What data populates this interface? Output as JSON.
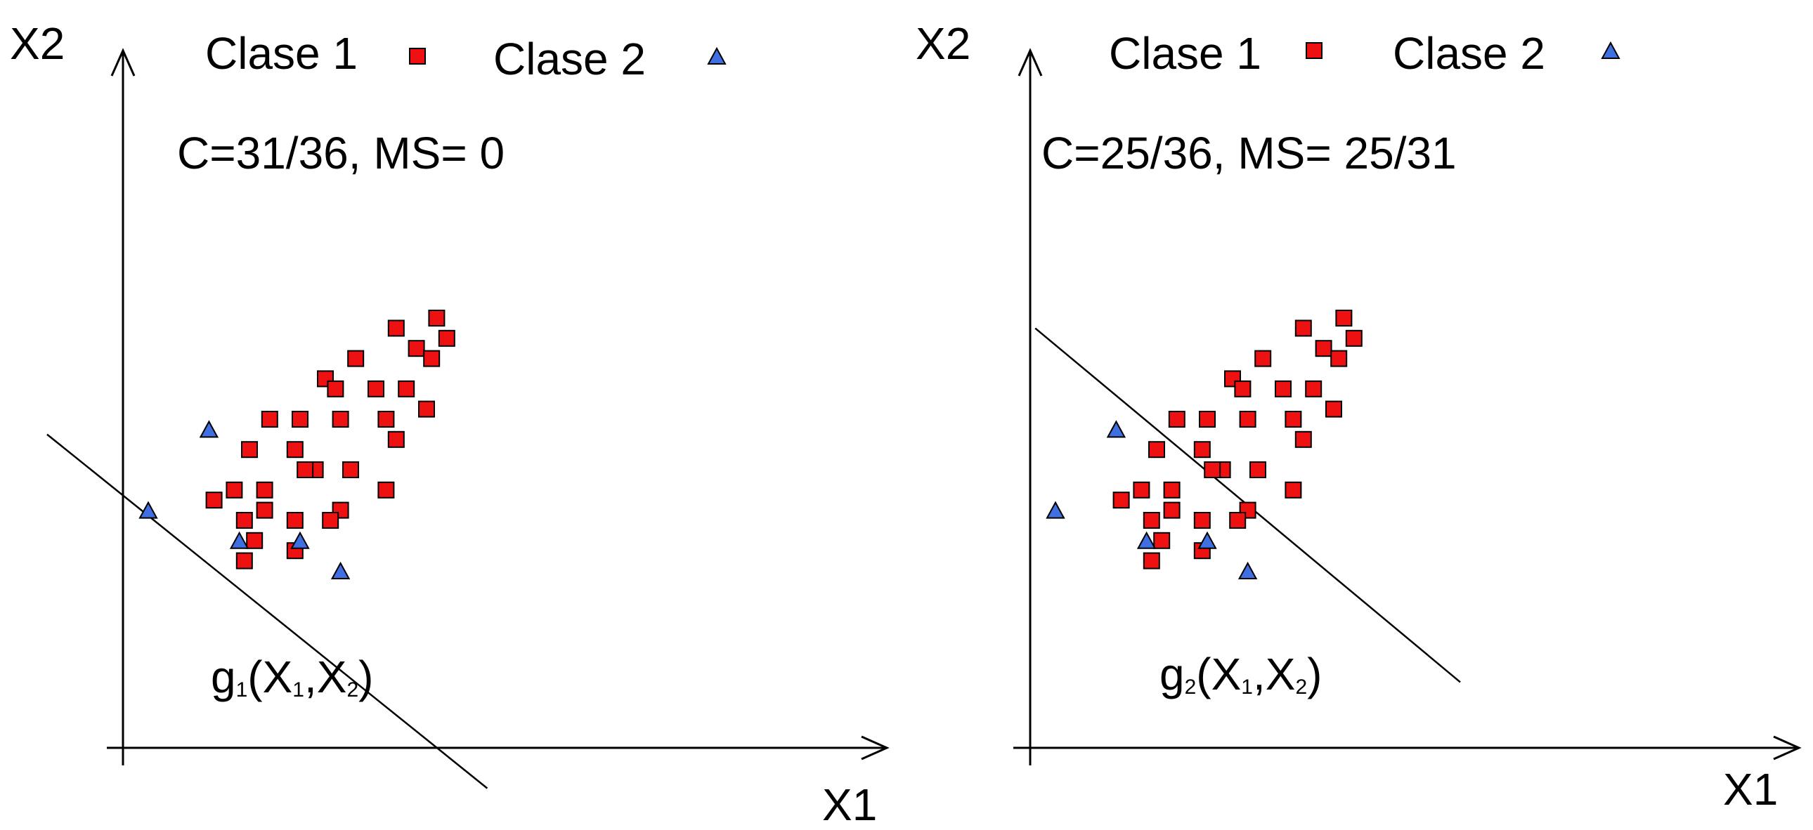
{
  "colors": {
    "clase1": "#ee1111",
    "clase2": "#3f6fe0",
    "marker_stroke": "#000000",
    "axis": "#000000"
  },
  "icons": {
    "clase1": "red-square-marker",
    "clase2": "blue-triangle-marker"
  },
  "chart_data": [
    {
      "type": "scatter",
      "x_axis_label": "X1",
      "y_axis_label": "X2",
      "legend": [
        "Clase 1",
        "Clase 2"
      ],
      "legend_position": "top",
      "annotation": "C=31/36, MS= 0",
      "discriminant_label": {
        "base": "g",
        "sub": "1",
        "args": "(X",
        "sub1": "1",
        "sep": ",X",
        "sub2": "2",
        "close": ")"
      },
      "decision_line": [
        [
          -1.5,
          6.2
        ],
        [
          7.2,
          -0.8
        ]
      ],
      "xlim": [
        -1.5,
        8.0
      ],
      "ylim": [
        -0.8,
        9.0
      ],
      "grid": false,
      "series": [
        {
          "name": "Clase 1",
          "marker": "square",
          "points": [
            [
              6.2,
              8.5
            ],
            [
              5.4,
              8.3
            ],
            [
              5.8,
              7.9
            ],
            [
              6.4,
              8.1
            ],
            [
              4.6,
              7.7
            ],
            [
              6.1,
              7.7
            ],
            [
              4.0,
              7.3
            ],
            [
              4.2,
              7.1
            ],
            [
              5.0,
              7.1
            ],
            [
              5.6,
              7.1
            ],
            [
              6.0,
              6.7
            ],
            [
              2.9,
              6.5
            ],
            [
              3.5,
              6.5
            ],
            [
              4.3,
              6.5
            ],
            [
              5.2,
              6.5
            ],
            [
              5.4,
              6.1
            ],
            [
              2.5,
              5.9
            ],
            [
              3.4,
              5.9
            ],
            [
              3.8,
              5.5
            ],
            [
              4.5,
              5.5
            ],
            [
              3.6,
              5.5
            ],
            [
              2.2,
              5.1
            ],
            [
              2.8,
              5.1
            ],
            [
              5.2,
              5.1
            ],
            [
              2.8,
              4.7
            ],
            [
              4.3,
              4.7
            ],
            [
              1.8,
              4.9
            ],
            [
              2.4,
              4.5
            ],
            [
              3.4,
              4.5
            ],
            [
              4.1,
              4.5
            ],
            [
              2.6,
              4.1
            ],
            [
              3.4,
              3.9
            ],
            [
              2.4,
              3.7
            ]
          ]
        },
        {
          "name": "Clase 2",
          "marker": "triangle",
          "points": [
            [
              1.7,
              6.3
            ],
            [
              0.5,
              4.7
            ],
            [
              2.3,
              4.1
            ],
            [
              3.5,
              4.1
            ],
            [
              4.3,
              3.5
            ]
          ]
        }
      ]
    },
    {
      "type": "scatter",
      "x_axis_label": "X1",
      "y_axis_label": "X2",
      "legend": [
        "Clase 1",
        "Clase 2"
      ],
      "legend_position": "top",
      "annotation": "C=25/36, MS= 25/31",
      "discriminant_label": {
        "base": "g",
        "sub": "2",
        "args": "(X",
        "sub1": "1",
        "sep": ",X",
        "sub2": "2",
        "close": ")"
      },
      "decision_line": [
        [
          0.1,
          8.3
        ],
        [
          8.5,
          1.3
        ]
      ],
      "xlim": [
        -0.2,
        9.0
      ],
      "ylim": [
        -0.8,
        9.0
      ],
      "grid": false,
      "series": [
        {
          "name": "Clase 1",
          "marker": "square",
          "points": [
            [
              6.2,
              8.5
            ],
            [
              5.4,
              8.3
            ],
            [
              5.8,
              7.9
            ],
            [
              6.4,
              8.1
            ],
            [
              4.6,
              7.7
            ],
            [
              6.1,
              7.7
            ],
            [
              4.0,
              7.3
            ],
            [
              4.2,
              7.1
            ],
            [
              5.0,
              7.1
            ],
            [
              5.6,
              7.1
            ],
            [
              6.0,
              6.7
            ],
            [
              2.9,
              6.5
            ],
            [
              3.5,
              6.5
            ],
            [
              4.3,
              6.5
            ],
            [
              5.2,
              6.5
            ],
            [
              5.4,
              6.1
            ],
            [
              2.5,
              5.9
            ],
            [
              3.4,
              5.9
            ],
            [
              3.8,
              5.5
            ],
            [
              4.5,
              5.5
            ],
            [
              3.6,
              5.5
            ],
            [
              2.2,
              5.1
            ],
            [
              2.8,
              5.1
            ],
            [
              5.2,
              5.1
            ],
            [
              2.8,
              4.7
            ],
            [
              4.3,
              4.7
            ],
            [
              1.8,
              4.9
            ],
            [
              2.4,
              4.5
            ],
            [
              3.4,
              4.5
            ],
            [
              4.1,
              4.5
            ],
            [
              2.6,
              4.1
            ],
            [
              3.4,
              3.9
            ],
            [
              2.4,
              3.7
            ]
          ]
        },
        {
          "name": "Clase 2",
          "marker": "triangle",
          "points": [
            [
              1.7,
              6.3
            ],
            [
              0.5,
              4.7
            ],
            [
              2.3,
              4.1
            ],
            [
              3.5,
              4.1
            ],
            [
              4.3,
              3.5
            ]
          ]
        }
      ]
    }
  ]
}
